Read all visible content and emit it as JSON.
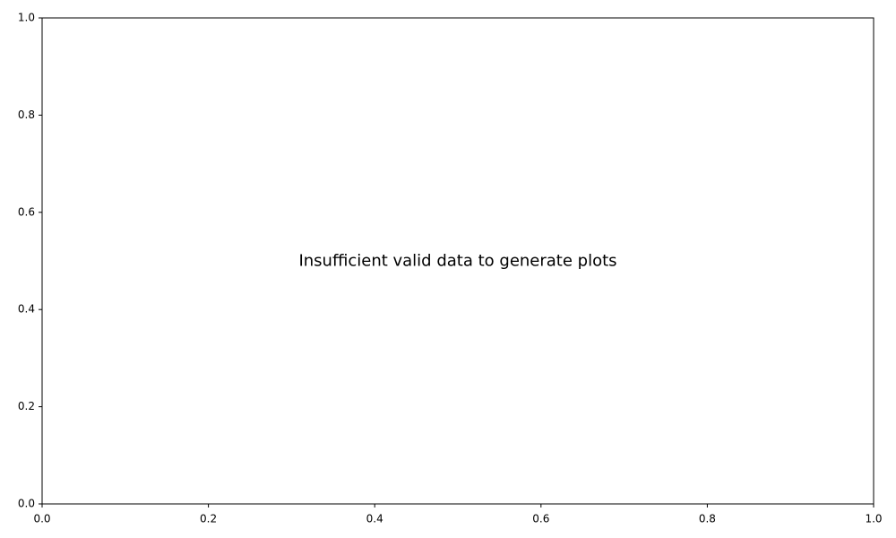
{
  "chart_data": {
    "type": "scatter",
    "title": "",
    "xlabel": "",
    "ylabel": "",
    "xlim": [
      0,
      1
    ],
    "ylim": [
      0,
      1
    ],
    "x_ticks": [
      0.0,
      0.2,
      0.4,
      0.6,
      0.8,
      1.0
    ],
    "y_ticks": [
      0.0,
      0.2,
      0.4,
      0.6,
      0.8,
      1.0
    ],
    "x_tick_labels": [
      "0.0",
      "0.2",
      "0.4",
      "0.6",
      "0.8",
      "1.0"
    ],
    "y_tick_labels": [
      "0.0",
      "0.2",
      "0.4",
      "0.6",
      "0.8",
      "1.0"
    ],
    "grid": false,
    "series": [],
    "annotation": {
      "text": "Insufficient valid data to generate plots",
      "x": 0.5,
      "y": 0.5
    }
  }
}
